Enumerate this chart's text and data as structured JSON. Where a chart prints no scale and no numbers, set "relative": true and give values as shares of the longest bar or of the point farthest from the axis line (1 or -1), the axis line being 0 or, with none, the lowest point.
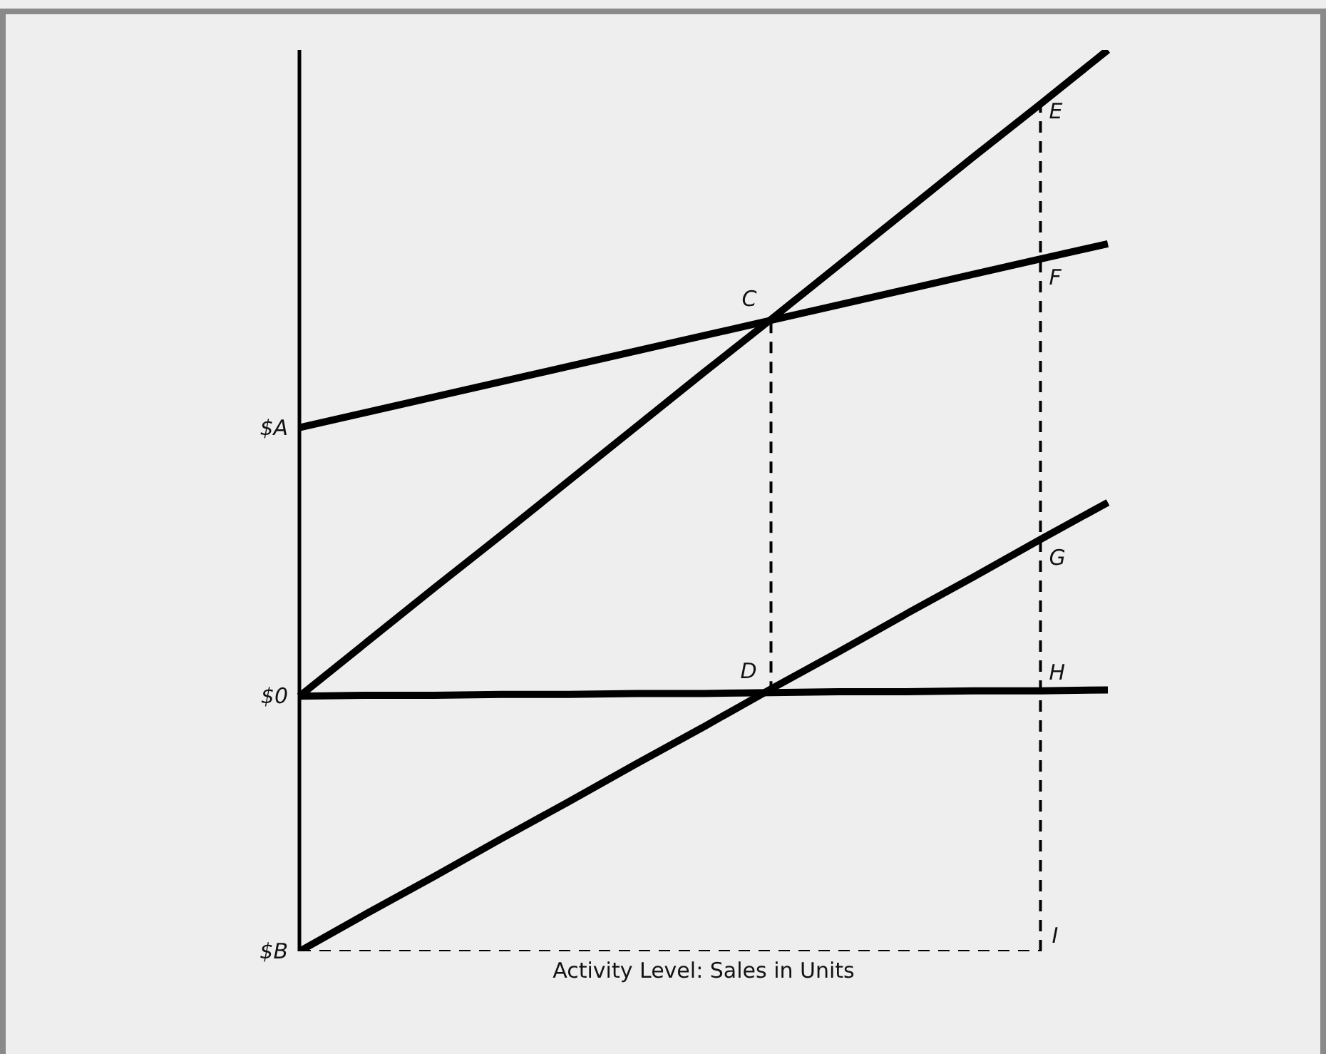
{
  "chart_data": {
    "type": "line",
    "relative": true,
    "xlabel": "Activity Level: Sales in Units",
    "categories": [
      null,
      null,
      null,
      null,
      null,
      null,
      null,
      null,
      null,
      null,
      null,
      null,
      null
    ],
    "series": [
      {
        "color": "#000000",
        "values": [
          0.283,
          0.343,
          0.403,
          0.462,
          0.522,
          0.582,
          0.642,
          0.701,
          0.761,
          0.821,
          0.881,
          0.94,
          1
        ]
      },
      {
        "color": "#000000",
        "values": [
          0.581,
          0.598,
          0.615,
          0.632,
          0.649,
          0.666,
          0.683,
          0.7,
          0.717,
          0.734,
          0.751,
          0.768,
          0.785
        ]
      },
      {
        "color": "#000000",
        "values": [
          0,
          0.042,
          0.083,
          0.125,
          0.166,
          0.208,
          0.249,
          0.291,
          0.332,
          0.374,
          0.415,
          0.457,
          0.498
        ]
      },
      {
        "color": "#000000",
        "values": [
          0.283,
          0.284,
          0.284,
          0.285,
          0.285,
          0.286,
          0.286,
          0.287,
          0.288,
          0.288,
          0.289,
          0.289,
          0.29
        ]
      },
      {
        "color": "#000000",
        "line_style": "dashed",
        "values": [
          0,
          0,
          0,
          0,
          0,
          0,
          0,
          0,
          0,
          0,
          0,
          0,
          null
        ]
      }
    ],
    "annotations": [
      "$A",
      "$0",
      "$B",
      {
        "text": "C",
        "y": 0.7
      },
      {
        "text": "D",
        "y": 0.287
      },
      {
        "text": "E",
        "y": 0.949
      },
      {
        "text": "F",
        "y": 0.768
      },
      {
        "text": "G",
        "y": 0.457
      },
      {
        "text": "H",
        "y": 0.289
      },
      "I"
    ]
  }
}
